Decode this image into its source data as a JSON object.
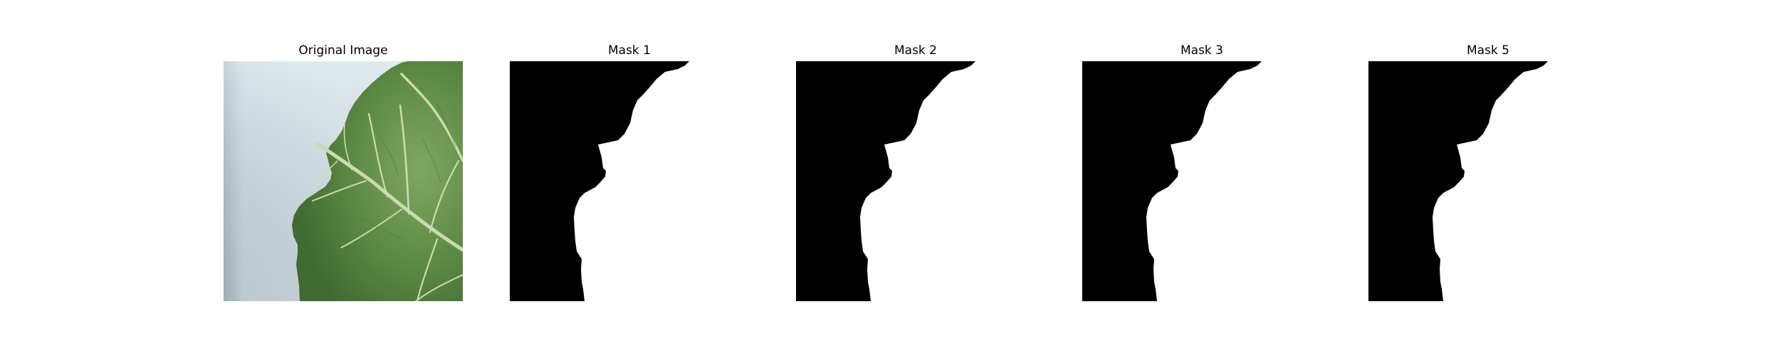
{
  "figure": {
    "panels": [
      {
        "title": "Original Image",
        "kind": "photo"
      },
      {
        "title": "Mask 1",
        "kind": "mask"
      },
      {
        "title": "Mask 2",
        "kind": "mask"
      },
      {
        "title": "Mask 3",
        "kind": "mask"
      },
      {
        "title": "Mask 5",
        "kind": "mask"
      }
    ],
    "colors": {
      "background": "#ffffff",
      "mask_foreground": "#ffffff",
      "mask_background": "#000000",
      "leaf": "#5e8a45",
      "leaf_vein": "#c7dba8",
      "backdrop": "#d7e3ea"
    }
  }
}
